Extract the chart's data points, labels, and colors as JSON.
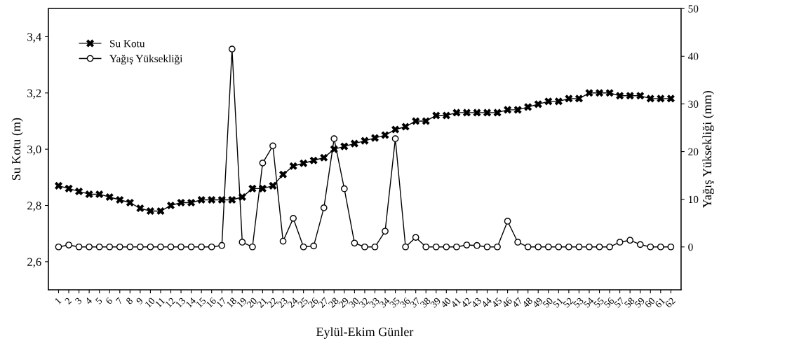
{
  "chart_data": {
    "type": "line",
    "xlabel": "Eylül-Ekim Günler",
    "ylabel": "Su Kotu (m)",
    "y2label": "Yağış Yüksekliği (mm)",
    "categories": [
      "1",
      "2",
      "3",
      "4",
      "5",
      "6",
      "7",
      "8",
      "9",
      "10",
      "11",
      "12",
      "13",
      "14",
      "15",
      "16",
      "17",
      "18",
      "19",
      "20",
      "21",
      "22",
      "23",
      "24",
      "25",
      "26",
      "27",
      "28",
      "29",
      "30",
      "32",
      "33",
      "34",
      "35",
      "36",
      "37",
      "38",
      "39",
      "40",
      "41",
      "42",
      "43",
      "44",
      "45",
      "46",
      "47",
      "48",
      "49",
      "50",
      "51",
      "52",
      "53",
      "54",
      "55",
      "56",
      "57",
      "58",
      "59",
      "60",
      "61",
      "62"
    ],
    "series": [
      {
        "name": "Su Kotu",
        "color": "#000000",
        "marker": "cross",
        "values": [
          2.87,
          2.86,
          2.85,
          2.84,
          2.84,
          2.83,
          2.82,
          2.81,
          2.79,
          2.78,
          2.78,
          2.8,
          2.81,
          2.81,
          2.82,
          2.82,
          2.82,
          2.82,
          2.83,
          2.86,
          2.86,
          2.87,
          2.91,
          2.94,
          2.95,
          2.96,
          2.97,
          3.0,
          3.01,
          3.02,
          3.03,
          3.04,
          3.05,
          3.07,
          3.08,
          3.1,
          3.1,
          3.12,
          3.12,
          3.13,
          3.13,
          3.13,
          3.13,
          3.13,
          3.14,
          3.14,
          3.15,
          3.16,
          3.17,
          3.17,
          3.18,
          3.18,
          3.2,
          3.2,
          3.2,
          3.19,
          3.19,
          3.19,
          3.18,
          3.18,
          3.18
        ]
      },
      {
        "name": "Yağış Yüksekliği",
        "color": "#000000",
        "marker": "circle",
        "axis": "y2",
        "values": [
          0,
          0.4,
          0,
          0,
          0,
          0,
          0,
          0,
          0,
          0,
          0,
          0,
          0,
          0,
          0,
          0,
          0.3,
          41.5,
          1.0,
          0,
          17.6,
          21.2,
          1.2,
          6.0,
          0,
          0.2,
          8.2,
          22.7,
          12.2,
          0.8,
          0,
          0,
          3.3,
          22.7,
          0,
          2.0,
          0,
          0,
          0,
          0,
          0.4,
          0.3,
          0,
          0,
          5.4,
          1.0,
          0,
          0,
          0,
          0,
          0,
          0,
          0,
          0,
          0,
          1.0,
          1.4,
          0.5,
          0,
          0,
          0
        ]
      }
    ],
    "ylim": [
      2.5,
      3.5
    ],
    "yticks": [
      {
        "value": 2.6,
        "label": "2,6"
      },
      {
        "value": 2.8,
        "label": "2,8"
      },
      {
        "value": 3.0,
        "label": "3,0"
      },
      {
        "value": 3.2,
        "label": "3,2"
      },
      {
        "value": 3.4,
        "label": "3,4"
      }
    ],
    "y2lim": [
      -9,
      50
    ],
    "y2ticks": [
      0,
      10,
      20,
      30,
      40,
      50
    ],
    "legend": "top left",
    "grid": false
  }
}
